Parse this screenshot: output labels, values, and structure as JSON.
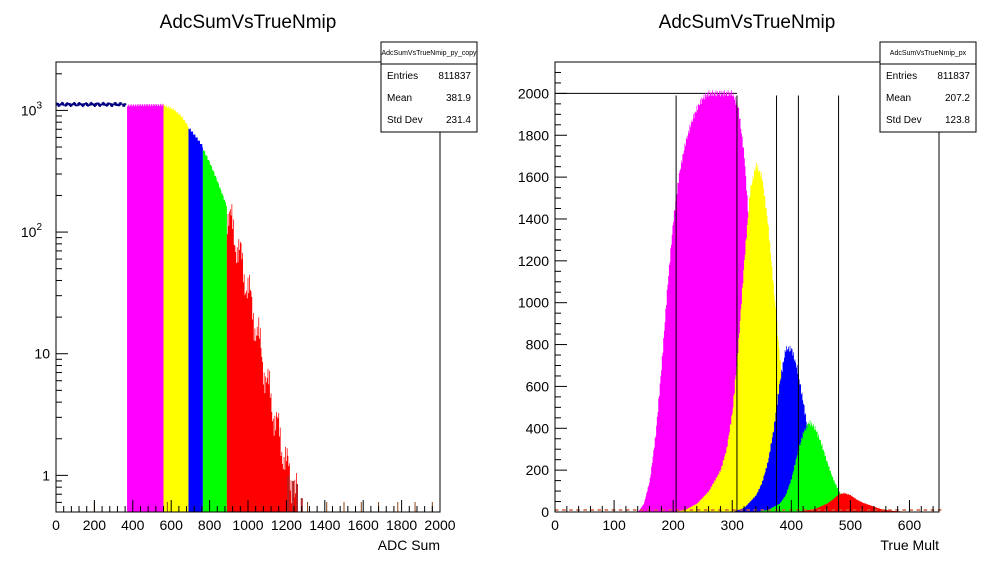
{
  "chart_data": [
    {
      "type": "histogram",
      "title": "AdcSumVsTrueNmip",
      "xlabel": "ADC Sum",
      "ylabel": "",
      "xlim": [
        0,
        2000
      ],
      "ylim": [
        0.5,
        2500
      ],
      "yscale": "log",
      "x_ticks": [
        "0",
        "200",
        "400",
        "600",
        "800",
        "1000",
        "1200",
        "1400",
        "1600",
        "1800",
        "2000"
      ],
      "y_ticks": [
        {
          "value": 1,
          "label": "1"
        },
        {
          "value": 10,
          "label": "10"
        },
        {
          "value": 100,
          "label": "10",
          "sup": "2"
        },
        {
          "value": 1000,
          "label": "10",
          "sup": "3"
        }
      ],
      "stats": {
        "name": "AdcSumVsTrueNmip_py_copy",
        "entries_label": "Entries",
        "entries": "811837",
        "mean_label": "Mean",
        "mean": "381.9",
        "stddev_label": "Std Dev",
        "stddev": "231.4"
      },
      "outline_series": [
        {
          "x": 0,
          "y": 1150
        },
        {
          "x": 50,
          "y": 1120
        },
        {
          "x": 100,
          "y": 1130
        },
        {
          "x": 150,
          "y": 1110
        },
        {
          "x": 200,
          "y": 1120
        },
        {
          "x": 250,
          "y": 1110
        },
        {
          "x": 300,
          "y": 1115
        },
        {
          "x": 350,
          "y": 1110
        },
        {
          "x": 365,
          "y": 1110
        }
      ],
      "bands": [
        {
          "color": "#ff00ff",
          "x0": 370,
          "x1": 560,
          "points": [
            [
              370,
              1100
            ],
            [
              450,
              1110
            ],
            [
              560,
              1110
            ]
          ]
        },
        {
          "color": "#ffff00",
          "x0": 560,
          "x1": 690,
          "points": [
            [
              560,
              1100
            ],
            [
              610,
              1020
            ],
            [
              650,
              900
            ],
            [
              690,
              730
            ]
          ]
        },
        {
          "color": "#0000ff",
          "x0": 690,
          "x1": 765,
          "points": [
            [
              690,
              720
            ],
            [
              730,
              600
            ],
            [
              765,
              500
            ]
          ]
        },
        {
          "color": "#00ff00",
          "x0": 765,
          "x1": 890,
          "points": [
            [
              765,
              480
            ],
            [
              800,
              370
            ],
            [
              840,
              260
            ],
            [
              890,
              160
            ]
          ]
        },
        {
          "color": "#ff0000",
          "x0": 890,
          "x1": 1260,
          "points": [
            [
              890,
              150
            ],
            [
              950,
              70
            ],
            [
              1000,
              33
            ],
            [
              1050,
              14
            ],
            [
              1100,
              5.5
            ],
            [
              1150,
              2.5
            ],
            [
              1200,
              1.2
            ],
            [
              1260,
              0.6
            ]
          ]
        }
      ],
      "outliers": [
        {
          "x": 1210,
          "y": 1.0
        },
        {
          "x": 1235,
          "y": 0.9
        },
        {
          "x": 1255,
          "y": 0.85
        },
        {
          "x": 1280,
          "y": 0.65
        }
      ]
    },
    {
      "type": "histogram",
      "title": "AdcSumVsTrueNmip",
      "xlabel": "True Mult",
      "ylabel": "",
      "xlim": [
        0,
        650
      ],
      "ylim": [
        0,
        2150
      ],
      "yscale": "linear",
      "x_ticks": [
        "0",
        "100",
        "200",
        "300",
        "400",
        "500",
        "600"
      ],
      "y_ticks": [
        "0",
        "200",
        "400",
        "600",
        "800",
        "1000",
        "1200",
        "1400",
        "1600",
        "1800",
        "2000"
      ],
      "stats": {
        "name": "AdcSumVsTrueNmip_px",
        "entries_label": "Entries",
        "entries": "811837",
        "mean_label": "Mean",
        "mean": "207.2",
        "stddev_label": "Std Dev",
        "stddev": "123.8"
      },
      "reference_level": 2000,
      "vertical_lines": [
        205,
        308,
        375,
        412,
        480
      ],
      "series": [
        {
          "name": "",
          "color": "#ff00ff",
          "x": [
            140,
            150,
            160,
            170,
            180,
            190,
            200,
            210,
            220,
            230,
            240,
            250,
            260,
            270,
            280,
            290,
            300,
            310,
            320,
            330,
            340,
            350,
            360,
            370
          ],
          "y": [
            0,
            40,
            150,
            370,
            700,
            1080,
            1400,
            1620,
            1760,
            1860,
            1930,
            1980,
            2000,
            2000,
            2000,
            2000,
            2000,
            1930,
            1700,
            1280,
            740,
            290,
            60,
            0
          ]
        },
        {
          "name": "",
          "color": "#ffff00",
          "x": [
            200,
            220,
            240,
            260,
            280,
            290,
            300,
            310,
            320,
            330,
            340,
            350,
            360,
            370,
            380,
            390,
            400,
            410,
            420,
            430
          ],
          "y": [
            0,
            10,
            40,
            100,
            200,
            300,
            480,
            800,
            1200,
            1540,
            1660,
            1600,
            1380,
            1060,
            740,
            460,
            250,
            110,
            30,
            0
          ]
        },
        {
          "name": "",
          "color": "#0000ff",
          "x": [
            300,
            320,
            340,
            350,
            360,
            370,
            380,
            390,
            400,
            410,
            420,
            430,
            440,
            450,
            460,
            470,
            480
          ],
          "y": [
            0,
            20,
            80,
            140,
            240,
            400,
            620,
            780,
            780,
            680,
            520,
            350,
            200,
            90,
            30,
            5,
            0
          ]
        },
        {
          "name": "",
          "color": "#00ff00",
          "x": [
            340,
            360,
            380,
            390,
            400,
            410,
            420,
            430,
            440,
            450,
            460,
            470,
            480,
            490,
            500,
            510,
            520,
            530,
            540
          ],
          "y": [
            0,
            10,
            40,
            80,
            160,
            280,
            380,
            430,
            400,
            330,
            240,
            160,
            100,
            60,
            30,
            12,
            5,
            2,
            0
          ]
        },
        {
          "name": "",
          "color": "#ff0000",
          "x": [
            400,
            420,
            440,
            460,
            470,
            480,
            490,
            500,
            510,
            520,
            530,
            540,
            550,
            560,
            570,
            580,
            590,
            600,
            610,
            620
          ],
          "y": [
            0,
            5,
            15,
            40,
            60,
            85,
            90,
            80,
            60,
            45,
            35,
            25,
            15,
            10,
            6,
            4,
            2,
            1,
            1,
            0
          ]
        }
      ]
    }
  ]
}
